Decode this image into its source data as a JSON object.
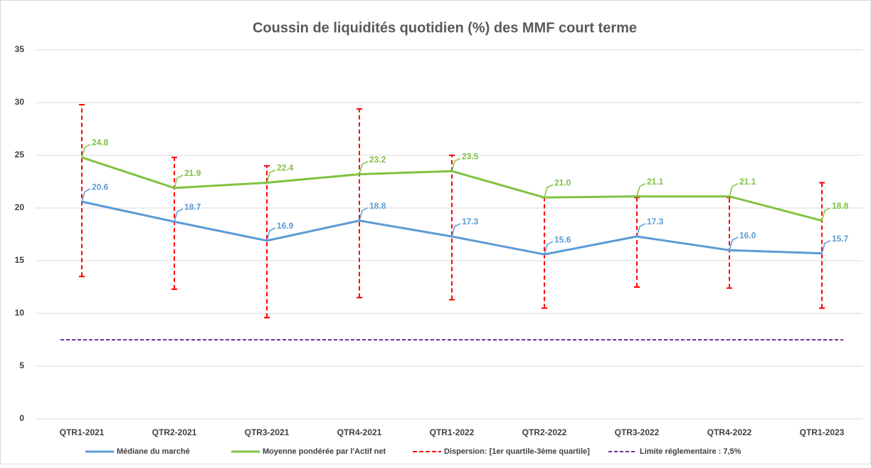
{
  "chart_data": {
    "type": "line",
    "title": "Coussin de liquidités quotidien (%) des MMF court terme",
    "categories": [
      "QTR1-2021",
      "QTR2-2021",
      "QTR3-2021",
      "QTR4-2021",
      "QTR1-2022",
      "QTR2-2022",
      "QTR3-2022",
      "QTR4-2022",
      "QTR1-2023"
    ],
    "series": [
      {
        "name": "Médiane du marché",
        "color": "#5b9bd5",
        "values": [
          20.6,
          18.7,
          16.9,
          18.8,
          17.3,
          15.6,
          17.3,
          16.0,
          15.7
        ],
        "value_labels": [
          "20.6",
          "18.7",
          "16.9",
          "18.8",
          "17.3",
          "15.6",
          "17.3",
          "16.0",
          "15.7"
        ]
      },
      {
        "name": "Moyenne pondérée par l'Actif net",
        "color": "#7fc241",
        "values": [
          24.8,
          21.9,
          22.4,
          23.2,
          23.5,
          21.0,
          21.1,
          21.1,
          18.8
        ],
        "value_labels": [
          "24.8",
          "21.9",
          "22.4",
          "23.2",
          "23.5",
          "21.0",
          "21.1",
          "21.1",
          "18.8"
        ]
      }
    ],
    "dispersion": {
      "name": "Dispersion: [1er quartile-3ème quartile]",
      "color": "#ff0000",
      "low": [
        13.5,
        12.3,
        9.6,
        11.5,
        11.3,
        10.5,
        12.5,
        12.4,
        10.5
      ],
      "high": [
        29.8,
        24.8,
        24.0,
        29.4,
        25.0,
        21.0,
        21.0,
        21.0,
        22.4
      ]
    },
    "limit": {
      "name": "Limite réglementaire : 7,5%",
      "color": "#7030a0",
      "value": 7.5
    },
    "ylim": [
      0,
      35
    ],
    "yticks": [
      0,
      5,
      10,
      15,
      20,
      25,
      30,
      35
    ],
    "grid": true
  }
}
